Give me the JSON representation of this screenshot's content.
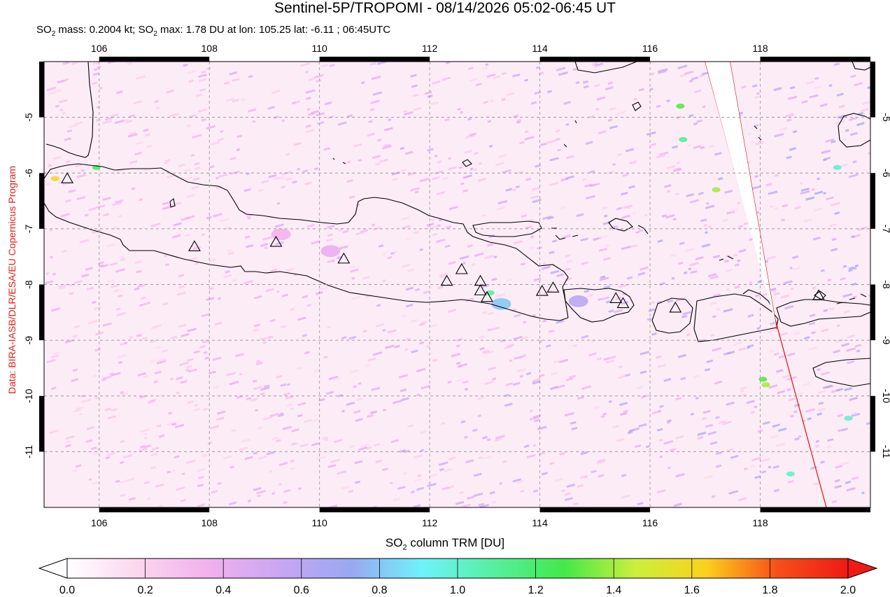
{
  "title": "Sentinel-5P/TROPOMI - 08/14/2026 05:02-06:45 UT",
  "stats": {
    "mass_prefix": "SO",
    "mass_sub": "2",
    "mass_value": " mass: 0.2004 kt; ",
    "max_prefix": "SO",
    "max_sub": "2",
    "max_value": " max: 1.78 DU at lon: 105.25 lat: -6.11 ; 06:45UTC"
  },
  "credit": "Data: BIRA-IASB/DLR/ESA/EU Copernicus Program",
  "map": {
    "lon_range": [
      105.0,
      120.0
    ],
    "lat_range": [
      -12.0,
      -4.0
    ],
    "lon_ticks": [
      106,
      108,
      110,
      112,
      114,
      116,
      118
    ],
    "lon_tick_labels": [
      "106",
      "108",
      "110",
      "112",
      "114",
      "116",
      "118"
    ],
    "lat_ticks": [
      -5,
      -6,
      -7,
      -8,
      -9,
      -10,
      -11
    ],
    "lat_tick_labels": [
      "-5",
      "-6",
      "-7",
      "-8",
      "-9",
      "-10",
      "-11"
    ],
    "grid": true,
    "volcano_icon": "triangle-icon",
    "volcanoes": [
      {
        "lon": 105.42,
        "lat": -6.1
      },
      {
        "lon": 107.73,
        "lat": -7.32
      },
      {
        "lon": 109.21,
        "lat": -7.24
      },
      {
        "lon": 110.44,
        "lat": -7.54
      },
      {
        "lon": 112.31,
        "lat": -7.94
      },
      {
        "lon": 112.58,
        "lat": -7.73
      },
      {
        "lon": 112.92,
        "lat": -7.94
      },
      {
        "lon": 112.92,
        "lat": -8.11
      },
      {
        "lon": 113.04,
        "lat": -8.23
      },
      {
        "lon": 114.04,
        "lat": -8.12
      },
      {
        "lon": 114.24,
        "lat": -8.06
      },
      {
        "lon": 115.38,
        "lat": -8.25
      },
      {
        "lon": 115.51,
        "lat": -8.34
      },
      {
        "lon": 116.46,
        "lat": -8.42
      },
      {
        "lon": 119.06,
        "lat": -8.2
      }
    ],
    "swath_edges": [
      {
        "from": [
          117.0,
          -4.0
        ],
        "to": [
          119.2,
          -12.0
        ]
      },
      {
        "from": [
          117.45,
          -4.0
        ],
        "to": [
          118.3,
          -8.8
        ]
      }
    ],
    "so2_hotspots": [
      {
        "lon": 105.2,
        "lat": -6.1,
        "value": 1.6
      },
      {
        "lon": 105.95,
        "lat": -5.9,
        "value": 1.2
      },
      {
        "lon": 113.1,
        "lat": -8.15,
        "value": 1.1
      },
      {
        "lon": 113.3,
        "lat": -8.35,
        "value": 0.8
      },
      {
        "lon": 114.7,
        "lat": -8.3,
        "value": 0.6
      },
      {
        "lon": 110.2,
        "lat": -7.4,
        "value": 0.4
      },
      {
        "lon": 109.3,
        "lat": -7.1,
        "value": 0.35
      },
      {
        "lon": 117.2,
        "lat": -6.3,
        "value": 1.4
      },
      {
        "lon": 118.05,
        "lat": -9.7,
        "value": 1.3
      },
      {
        "lon": 118.1,
        "lat": -9.8,
        "value": 1.4
      },
      {
        "lon": 116.55,
        "lat": -4.8,
        "value": 1.3
      },
      {
        "lon": 116.6,
        "lat": -5.4,
        "value": 1.1
      },
      {
        "lon": 119.4,
        "lat": -5.9,
        "value": 1.0
      },
      {
        "lon": 118.55,
        "lat": -11.4,
        "value": 1.0
      },
      {
        "lon": 119.6,
        "lat": -10.4,
        "value": 1.0
      }
    ],
    "colors": {
      "background": "#fcecf6",
      "coast": "#000000",
      "grid": "#9a9a9a",
      "swath": "#e01010"
    }
  },
  "colorbar": {
    "label_prefix": "SO",
    "label_sub": "2",
    "label_suffix": " column TRM [DU]",
    "range": [
      0.0,
      2.0
    ],
    "ticks": [
      0.0,
      0.2,
      0.4,
      0.6,
      0.8,
      1.0,
      1.2,
      1.4,
      1.6,
      1.8,
      2.0
    ],
    "tick_labels": [
      "0.0",
      "0.2",
      "0.4",
      "0.6",
      "0.8",
      "1.0",
      "1.2",
      "1.4",
      "1.6",
      "1.8",
      "2.0"
    ],
    "colors": [
      "#ffffff",
      "#fbd6ee",
      "#f2b0ee",
      "#c9a6f4",
      "#98a8f2",
      "#6ff2fb",
      "#55f0a0",
      "#44e84a",
      "#cbef3c",
      "#fbd11c",
      "#f6501a",
      "#ee1a14"
    ]
  }
}
